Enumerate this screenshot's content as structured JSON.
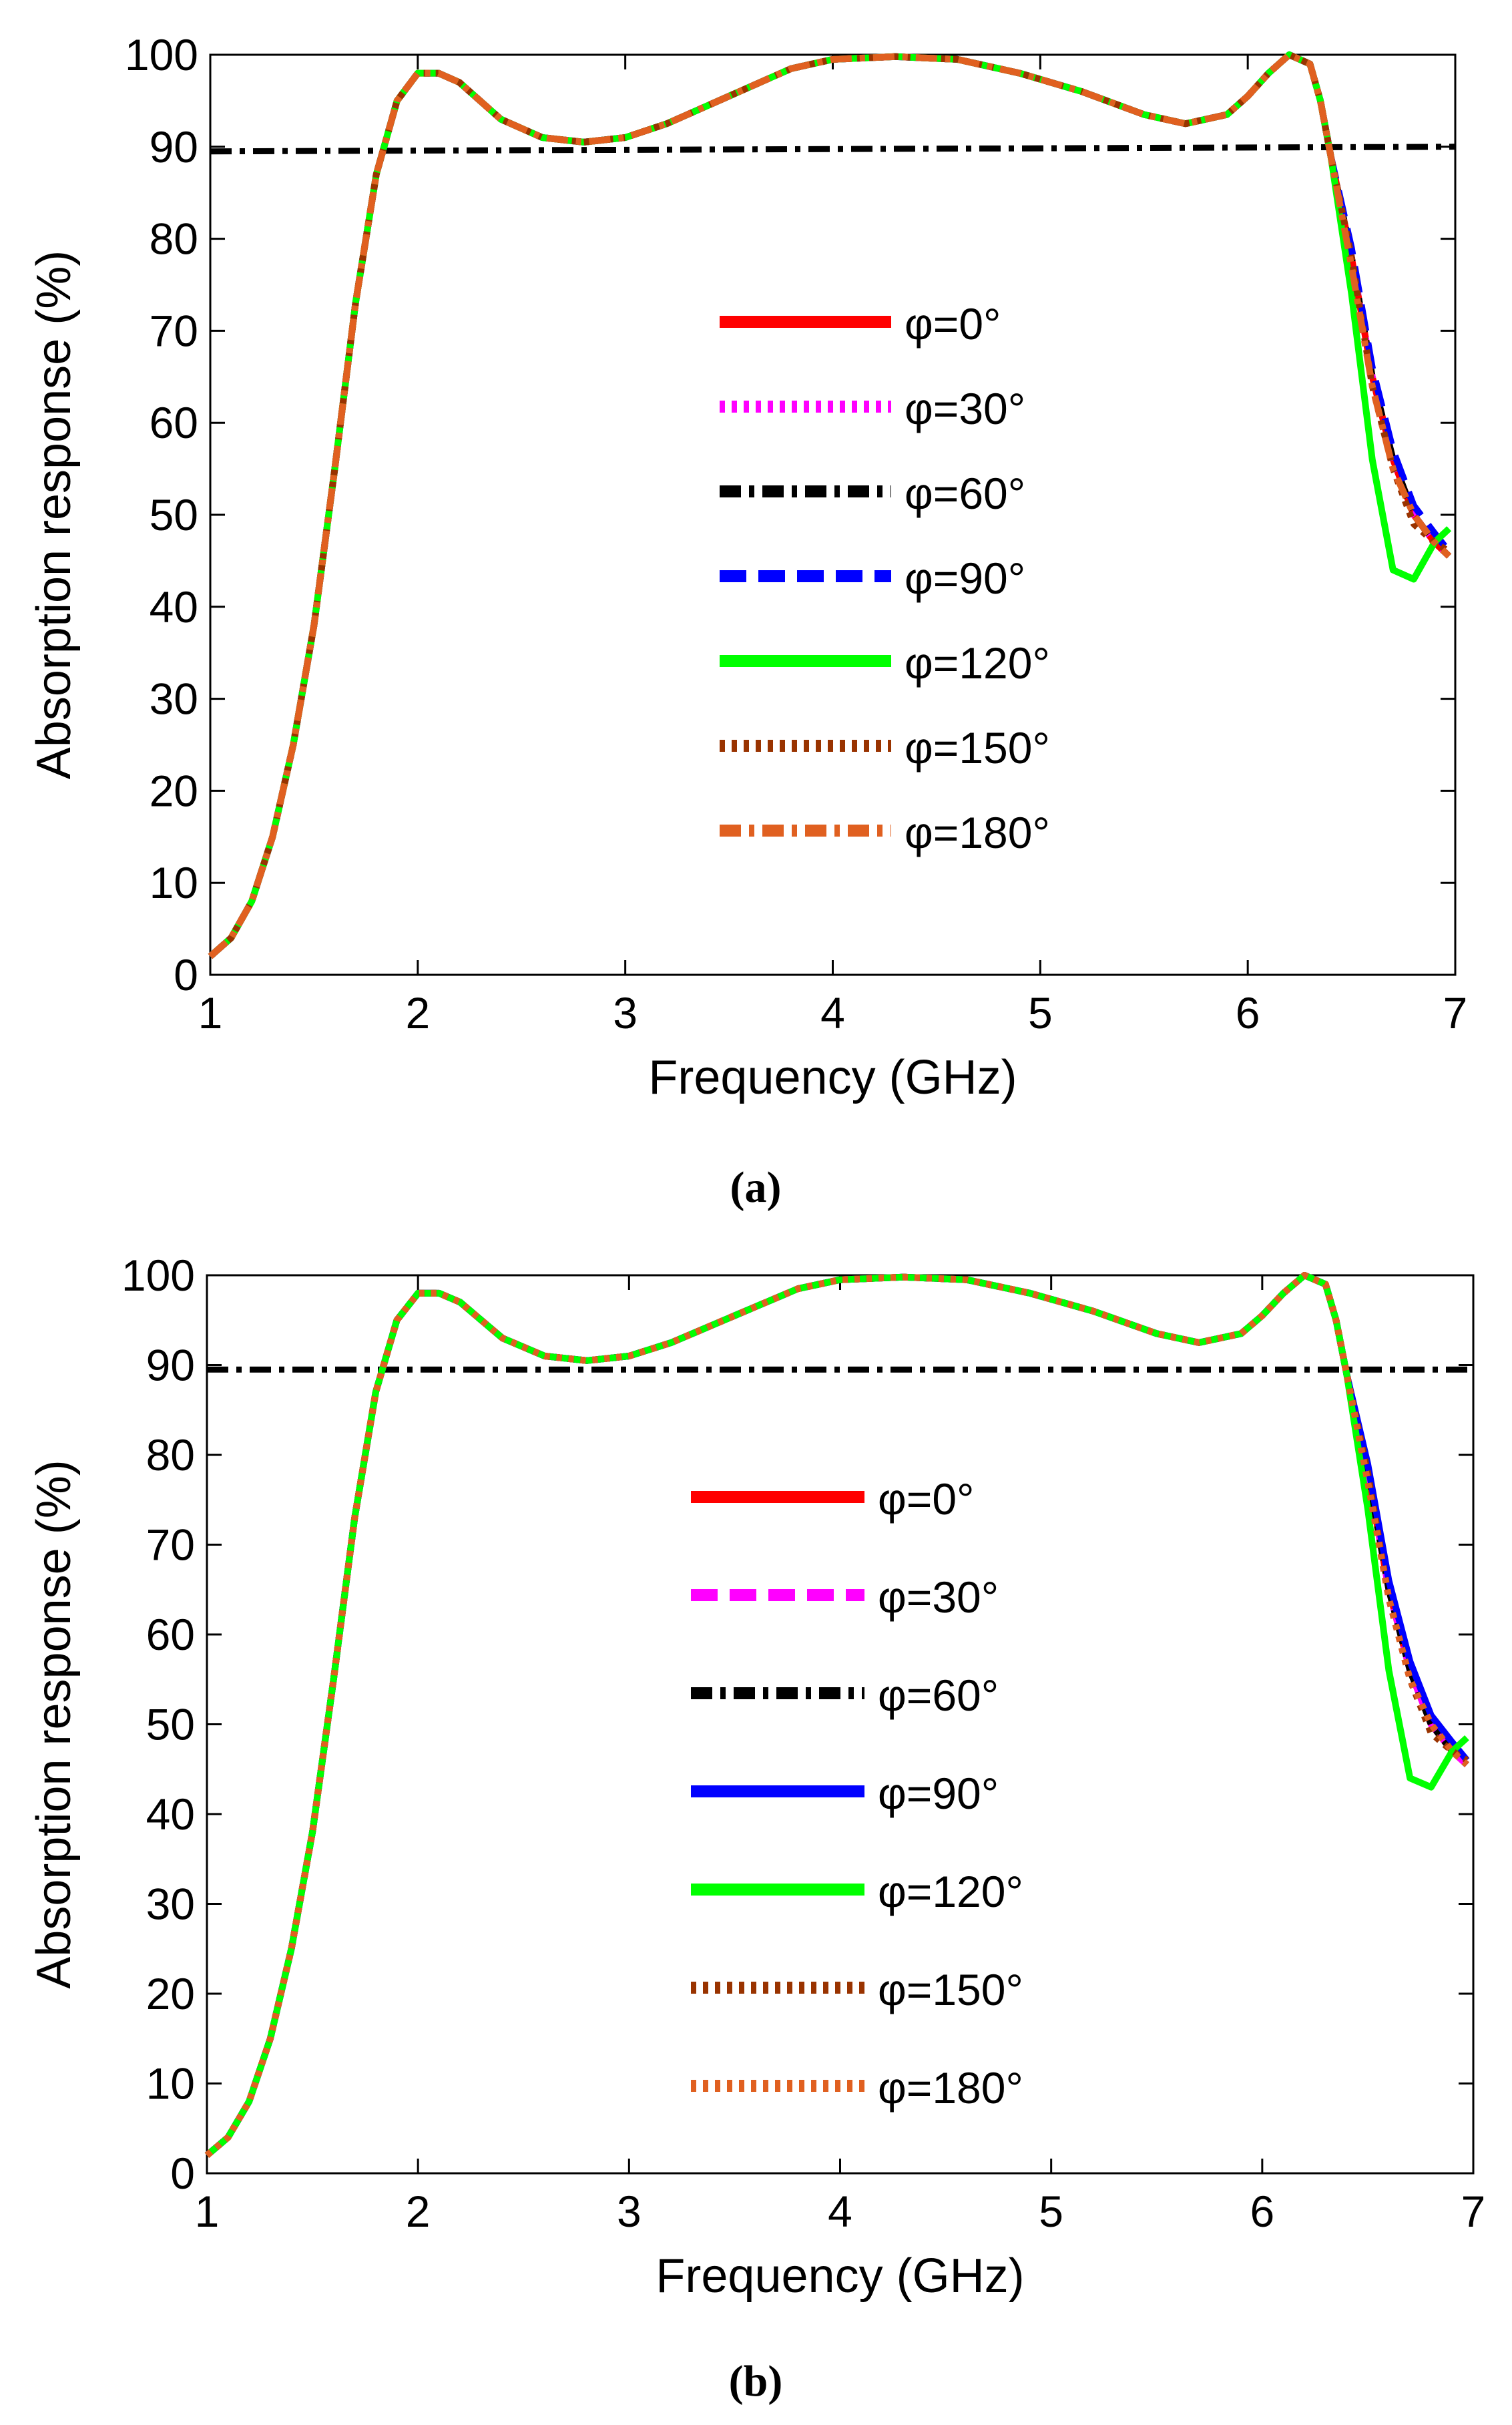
{
  "chart_data": [
    {
      "type": "line",
      "panel_label": "(a)",
      "xlabel": "Frequency (GHz)",
      "ylabel": "Absorption response (%)",
      "xlim": [
        1,
        7
      ],
      "ylim": [
        0,
        100
      ],
      "xticks": [
        "1",
        "2",
        "3",
        "4",
        "5",
        "6",
        "7"
      ],
      "yticks": [
        "0",
        "10",
        "20",
        "30",
        "40",
        "50",
        "60",
        "70",
        "80",
        "90",
        "100"
      ],
      "legend_position": "center",
      "base_curve": {
        "x": [
          1.0,
          1.1,
          1.2,
          1.3,
          1.4,
          1.5,
          1.6,
          1.7,
          1.8,
          1.9,
          2.0,
          2.1,
          2.2,
          2.3,
          2.4,
          2.6,
          2.8,
          3.0,
          3.2,
          3.5,
          3.8,
          4.0,
          4.3,
          4.6,
          4.9,
          5.2,
          5.5,
          5.7,
          5.9,
          6.0,
          6.1,
          6.2,
          6.3,
          6.35,
          6.4,
          6.5,
          6.6,
          6.7,
          6.8,
          6.9,
          6.97
        ],
        "y": [
          2,
          4,
          8,
          15,
          25,
          38,
          55,
          73,
          87,
          95,
          98,
          98,
          97,
          95,
          93,
          91,
          90.5,
          91,
          92.5,
          95.5,
          98.5,
          99.5,
          99.8,
          99.5,
          98,
          96,
          93.5,
          92.5,
          93.5,
          95.5,
          98,
          100,
          99,
          95,
          89,
          78,
          65,
          56,
          50,
          47,
          45.5
        ]
      },
      "reference_line": {
        "name": "φ=60°",
        "x": [
          1,
          7
        ],
        "y": [
          89.5,
          90
        ]
      },
      "series": [
        {
          "name": "φ=0°",
          "color": "#ff0000",
          "dash": "solid",
          "tail_y": [
            78,
            65,
            56,
            50,
            47,
            45.5
          ]
        },
        {
          "name": "φ=30°",
          "color": "#ff00ff",
          "dash": "dotted",
          "tail_y": [
            78,
            65,
            56,
            50,
            47,
            45.5
          ]
        },
        {
          "name": "φ=60°",
          "color": "#000000",
          "dash": "dashdot",
          "tail_y": [
            78,
            65,
            56,
            50,
            47,
            45.5
          ]
        },
        {
          "name": "φ=90°",
          "color": "#0000ff",
          "dash": "dashed",
          "tail_y": [
            79,
            66,
            57,
            51,
            48,
            46
          ]
        },
        {
          "name": "φ=120°",
          "color": "#00ff00",
          "dash": "solid",
          "tail_y": [
            74,
            56,
            44,
            43,
            47,
            48.5
          ]
        },
        {
          "name": "φ=150°",
          "color": "#993300",
          "dash": "dotted",
          "tail_y": [
            78,
            64,
            55,
            49,
            47,
            46
          ]
        },
        {
          "name": "φ=180°",
          "color": "#e06020",
          "dash": "dashdot",
          "tail_y": [
            77,
            64,
            55,
            50,
            47,
            45.5
          ]
        }
      ]
    },
    {
      "type": "line",
      "panel_label": "(b)",
      "xlabel": "Frequency (GHz)",
      "ylabel": "Absorption response (%)",
      "xlim": [
        1,
        7
      ],
      "ylim": [
        0,
        100
      ],
      "xticks": [
        "1",
        "2",
        "3",
        "4",
        "5",
        "6",
        "7"
      ],
      "yticks": [
        "0",
        "10",
        "20",
        "30",
        "40",
        "50",
        "60",
        "70",
        "80",
        "90",
        "100"
      ],
      "legend_position": "center",
      "base_curve": {
        "x": [
          1.0,
          1.1,
          1.2,
          1.3,
          1.4,
          1.5,
          1.6,
          1.7,
          1.8,
          1.9,
          2.0,
          2.1,
          2.2,
          2.3,
          2.4,
          2.6,
          2.8,
          3.0,
          3.2,
          3.5,
          3.8,
          4.0,
          4.3,
          4.6,
          4.9,
          5.2,
          5.5,
          5.7,
          5.9,
          6.0,
          6.1,
          6.2,
          6.3,
          6.35,
          6.4,
          6.5,
          6.6,
          6.7,
          6.8,
          6.9,
          6.97
        ],
        "y": [
          2,
          4,
          8,
          15,
          25,
          38,
          55,
          73,
          87,
          95,
          98,
          98,
          97,
          95,
          93,
          91,
          90.5,
          91,
          92.5,
          95.5,
          98.5,
          99.5,
          99.8,
          99.5,
          98,
          96,
          93.5,
          92.5,
          93.5,
          95.5,
          98,
          100,
          99,
          95,
          89,
          78,
          65,
          56,
          50,
          47,
          45.5
        ]
      },
      "reference_line": {
        "name": "φ=60°",
        "x": [
          1,
          7
        ],
        "y": [
          89.5,
          89.5
        ]
      },
      "series": [
        {
          "name": "φ=0°",
          "color": "#ff0000",
          "dash": "solid",
          "tail_y": [
            78,
            65,
            56,
            50,
            47,
            45.5
          ]
        },
        {
          "name": "φ=30°",
          "color": "#ff00ff",
          "dash": "dashed",
          "tail_y": [
            78,
            65,
            56,
            50,
            47,
            45.5
          ]
        },
        {
          "name": "φ=60°",
          "color": "#000000",
          "dash": "dashdot",
          "tail_y": [
            78,
            65,
            56,
            50,
            47,
            45.5
          ]
        },
        {
          "name": "φ=90°",
          "color": "#0000ff",
          "dash": "solid",
          "tail_y": [
            79,
            66,
            57,
            51,
            48,
            46
          ]
        },
        {
          "name": "φ=120°",
          "color": "#00ff00",
          "dash": "solid",
          "tail_y": [
            74,
            56,
            44,
            43,
            47,
            48.5
          ]
        },
        {
          "name": "φ=150°",
          "color": "#993300",
          "dash": "dotted",
          "tail_y": [
            78,
            64,
            55,
            49,
            47,
            46
          ]
        },
        {
          "name": "φ=180°",
          "color": "#e06020",
          "dash": "dotted",
          "tail_y": [
            77,
            64,
            55,
            50,
            47,
            45.5
          ]
        }
      ]
    }
  ]
}
